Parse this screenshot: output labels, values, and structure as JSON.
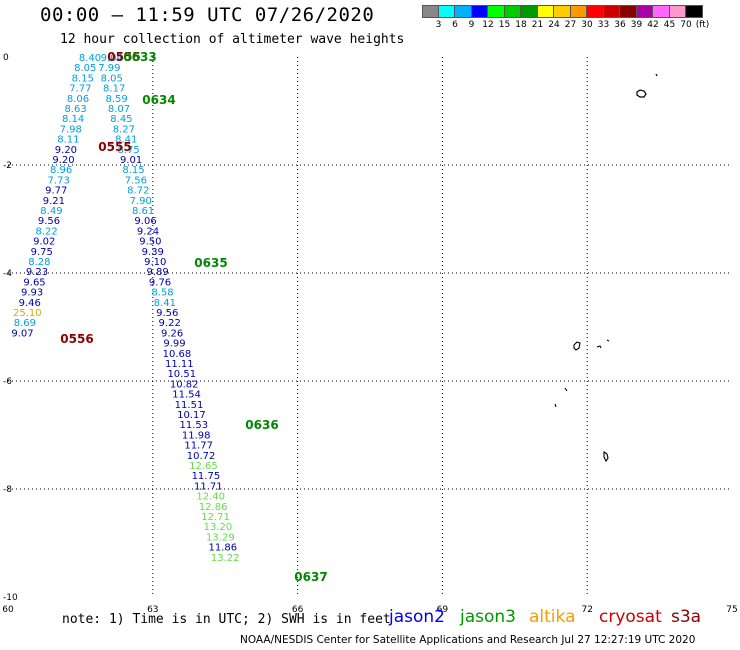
{
  "header": {
    "title": "00:00 – 11:59 UTC 07/26/2020",
    "subtitle": "12 hour collection of altimeter wave heights"
  },
  "legend": {
    "colors": [
      "#888888",
      "#00ffff",
      "#00b0ff",
      "#0000ff",
      "#00ff00",
      "#00cc00",
      "#009900",
      "#ffff00",
      "#ffcc00",
      "#ff9900",
      "#ff0000",
      "#cc0000",
      "#880000",
      "#aa00aa",
      "#ff66ff",
      "#ff99cc",
      "#000000"
    ],
    "labels": [
      "3",
      "6",
      "9",
      "12",
      "15",
      "18",
      "21",
      "24",
      "27",
      "30",
      "33",
      "36",
      "39",
      "42",
      "45",
      "70",
      "(ft)"
    ]
  },
  "axes": {
    "x_labels": [
      "60",
      "63",
      "66",
      "69",
      "72",
      "75"
    ],
    "y_labels": [
      "0",
      "-2",
      "-4",
      "-6",
      "-8",
      "-10"
    ]
  },
  "satellites": [
    {
      "name": "jason2",
      "color": "#0000ee"
    },
    {
      "name": "jason3",
      "color": "#009900"
    },
    {
      "name": "altika",
      "color": "#ff9900"
    },
    {
      "name": "cryosat",
      "color": "#cc0000"
    },
    {
      "name": "s3a",
      "color": "#880000"
    }
  ],
  "footer": {
    "note": "note: 1) Time is in UTC; 2) SWH is in feet",
    "credit": "NOAA/NESDIS Center for Satellite Applications and Research   Jul 27 12:27:19 UTC 2020"
  },
  "chart_data": {
    "type": "scatter",
    "title": "00:00 – 11:59 UTC 07/26/2020",
    "subtitle": "12 hour collection of altimeter wave heights",
    "xlim": [
      60,
      75
    ],
    "ylim": [
      -10,
      0
    ],
    "x_ticks": [
      60,
      63,
      66,
      69,
      72,
      75
    ],
    "y_ticks": [
      0,
      -2,
      -4,
      -6,
      -8,
      -10
    ],
    "grid": true,
    "colors": {
      "wh_cyan": "#00a0e0",
      "wh_blue": "#0000aa",
      "wh_green": "#66dd44",
      "wh_gold": "#ddaa00",
      "time_s3a": "#880000",
      "time_jason3": "#008800"
    },
    "tracks": [
      {
        "name": "track-west",
        "points": [
          {
            "x": 61.7,
            "y": -0.0,
            "t": "8.40",
            "c": "wh_cyan"
          },
          {
            "x": 61.6,
            "y": -0.25,
            "t": "8.05",
            "c": "wh_cyan"
          },
          {
            "x": 61.55,
            "y": -0.5,
            "t": "8.15",
            "c": "wh_cyan"
          },
          {
            "x": 61.5,
            "y": -0.75,
            "t": "7.77",
            "c": "wh_cyan"
          },
          {
            "x": 61.45,
            "y": -1.0,
            "t": "8.06",
            "c": "wh_cyan"
          },
          {
            "x": 61.4,
            "y": -1.25,
            "t": "8.63",
            "c": "wh_cyan"
          },
          {
            "x": 61.35,
            "y": -1.5,
            "t": "8.14",
            "c": "wh_cyan"
          },
          {
            "x": 61.3,
            "y": -1.75,
            "t": "7.98",
            "c": "wh_cyan"
          },
          {
            "x": 61.25,
            "y": -2.0,
            "t": "8.11",
            "c": "wh_cyan"
          },
          {
            "x": 61.2,
            "y": -2.25,
            "t": "9.20",
            "c": "wh_blue"
          },
          {
            "x": 61.15,
            "y": -2.5,
            "t": "9.20",
            "c": "wh_blue"
          },
          {
            "x": 61.1,
            "y": -2.75,
            "t": "8.96",
            "c": "wh_cyan"
          },
          {
            "x": 61.05,
            "y": -3.0,
            "t": "7.73",
            "c": "wh_cyan"
          },
          {
            "x": 61.0,
            "y": -3.25,
            "t": "9.77",
            "c": "wh_blue"
          },
          {
            "x": 60.95,
            "y": -3.5,
            "t": "9.21",
            "c": "wh_blue"
          },
          {
            "x": 60.9,
            "y": -3.75,
            "t": "8.49",
            "c": "wh_cyan"
          },
          {
            "x": 60.85,
            "y": -4.0,
            "t": "9.56",
            "c": "wh_blue"
          },
          {
            "x": 60.8,
            "y": -4.25,
            "t": "8.22",
            "c": "wh_cyan"
          },
          {
            "x": 60.75,
            "y": -4.5,
            "t": "9.02",
            "c": "wh_blue"
          },
          {
            "x": 60.7,
            "y": -4.75,
            "t": "9.75",
            "c": "wh_blue"
          },
          {
            "x": 60.65,
            "y": -5.0,
            "t": "8.28",
            "c": "wh_cyan"
          },
          {
            "x": 60.6,
            "y": -5.25,
            "t": "9.23",
            "c": "wh_blue"
          },
          {
            "x": 60.55,
            "y": -5.5,
            "t": "9.65",
            "c": "wh_blue"
          },
          {
            "x": 60.5,
            "y": -5.75,
            "t": "9.93",
            "c": "wh_blue"
          },
          {
            "x": 60.45,
            "y": -6.0,
            "t": "9.46",
            "c": "wh_blue"
          },
          {
            "x": 60.4,
            "y": -6.25,
            "t": "25.10",
            "c": "wh_gold"
          },
          {
            "x": 60.35,
            "y": -6.5,
            "t": "8.69",
            "c": "wh_cyan"
          },
          {
            "x": 60.3,
            "y": -6.75,
            "t": "9.07",
            "c": "wh_blue"
          }
        ]
      },
      {
        "name": "track-east",
        "points": [
          {
            "x": 62.15,
            "y": -0.0,
            "t": "9.04",
            "c": "wh_cyan"
          },
          {
            "x": 62.1,
            "y": -0.25,
            "t": "7.99",
            "c": "wh_cyan"
          },
          {
            "x": 62.15,
            "y": -0.5,
            "t": "8.05",
            "c": "wh_cyan"
          },
          {
            "x": 62.2,
            "y": -0.75,
            "t": "8.17",
            "c": "wh_cyan"
          },
          {
            "x": 62.25,
            "y": -1.0,
            "t": "8.59",
            "c": "wh_cyan"
          },
          {
            "x": 62.3,
            "y": -1.25,
            "t": "8.07",
            "c": "wh_cyan"
          },
          {
            "x": 62.35,
            "y": -1.5,
            "t": "8.45",
            "c": "wh_cyan"
          },
          {
            "x": 62.4,
            "y": -1.75,
            "t": "8.27",
            "c": "wh_cyan"
          },
          {
            "x": 62.45,
            "y": -2.0,
            "t": "8.41",
            "c": "wh_cyan"
          },
          {
            "x": 62.5,
            "y": -2.25,
            "t": "8.75",
            "c": "wh_cyan"
          },
          {
            "x": 62.55,
            "y": -2.5,
            "t": "9.01",
            "c": "wh_blue"
          },
          {
            "x": 62.6,
            "y": -2.75,
            "t": "8.15",
            "c": "wh_cyan"
          },
          {
            "x": 62.65,
            "y": -3.0,
            "t": "7.56",
            "c": "wh_cyan"
          },
          {
            "x": 62.7,
            "y": -3.25,
            "t": "8.72",
            "c": "wh_cyan"
          },
          {
            "x": 62.75,
            "y": -3.5,
            "t": "7.90",
            "c": "wh_cyan"
          },
          {
            "x": 62.8,
            "y": -3.75,
            "t": "8.61",
            "c": "wh_cyan"
          },
          {
            "x": 62.85,
            "y": -4.0,
            "t": "9.06",
            "c": "wh_blue"
          },
          {
            "x": 62.9,
            "y": -4.25,
            "t": "9.24",
            "c": "wh_blue"
          },
          {
            "x": 62.95,
            "y": -4.5,
            "t": "9.50",
            "c": "wh_blue"
          },
          {
            "x": 63.0,
            "y": -4.75,
            "t": "9.39",
            "c": "wh_blue"
          },
          {
            "x": 63.05,
            "y": -5.0,
            "t": "9.10",
            "c": "wh_blue"
          },
          {
            "x": 63.1,
            "y": -5.25,
            "t": "9.89",
            "c": "wh_blue"
          },
          {
            "x": 63.15,
            "y": -5.5,
            "t": "9.76",
            "c": "wh_blue"
          },
          {
            "x": 63.2,
            "y": -5.75,
            "t": "8.58",
            "c": "wh_cyan"
          },
          {
            "x": 63.25,
            "y": -6.0,
            "t": "8.41",
            "c": "wh_cyan"
          },
          {
            "x": 63.3,
            "y": -6.25,
            "t": "9.56",
            "c": "wh_blue"
          },
          {
            "x": 63.35,
            "y": -6.5,
            "t": "9.22",
            "c": "wh_blue"
          },
          {
            "x": 63.4,
            "y": -6.75,
            "t": "9.26",
            "c": "wh_blue"
          },
          {
            "x": 63.45,
            "y": -7.0,
            "t": "9.99",
            "c": "wh_blue"
          },
          {
            "x": 63.5,
            "y": -7.25,
            "t": "10.68",
            "c": "wh_blue"
          },
          {
            "x": 63.55,
            "y": -7.5,
            "t": "11.11",
            "c": "wh_blue"
          },
          {
            "x": 63.6,
            "y": -7.75,
            "t": "10.51",
            "c": "wh_blue"
          },
          {
            "x": 63.65,
            "y": -8.0,
            "t": "10.82",
            "c": "wh_blue"
          },
          {
            "x": 63.7,
            "y": -8.25,
            "t": "11.54",
            "c": "wh_blue"
          },
          {
            "x": 63.75,
            "y": -8.5,
            "t": "11.51",
            "c": "wh_blue"
          },
          {
            "x": 63.8,
            "y": -8.75,
            "t": "10.17",
            "c": "wh_blue"
          },
          {
            "x": 63.85,
            "y": -9.0,
            "t": "11.53",
            "c": "wh_blue"
          },
          {
            "x": 63.9,
            "y": -9.25,
            "t": "11.98",
            "c": "wh_blue"
          },
          {
            "x": 63.95,
            "y": -9.5,
            "t": "11.77",
            "c": "wh_blue"
          },
          {
            "x": 64.0,
            "y": -9.75,
            "t": "10.72",
            "c": "wh_blue"
          },
          {
            "x": 64.05,
            "y": -10.0,
            "t": "12.65",
            "c": "wh_green"
          },
          {
            "x": 64.1,
            "y": -10.25,
            "t": "11.75",
            "c": "wh_blue"
          },
          {
            "x": 64.15,
            "y": -10.5,
            "t": "11.71",
            "c": "wh_blue"
          },
          {
            "x": 64.2,
            "y": -10.75,
            "t": "12.40",
            "c": "wh_green"
          },
          {
            "x": 64.25,
            "y": -11.0,
            "t": "12.86",
            "c": "wh_green"
          },
          {
            "x": 64.3,
            "y": -11.25,
            "t": "12.71",
            "c": "wh_green"
          },
          {
            "x": 64.35,
            "y": -11.5,
            "t": "13.20",
            "c": "wh_green"
          },
          {
            "x": 64.4,
            "y": -11.75,
            "t": "13.29",
            "c": "wh_green"
          },
          {
            "x": 64.45,
            "y": -12.0,
            "t": "11.86",
            "c": "wh_blue"
          },
          {
            "x": 64.5,
            "y": -12.25,
            "t": "13.22",
            "c": "wh_green"
          }
        ]
      }
    ],
    "time_labels": [
      {
        "x": 62.2,
        "y": 0.0,
        "t": "0555",
        "c": "time_s3a"
      },
      {
        "x": 62.35,
        "y": 0.0,
        "t": "0633",
        "c": "time_jason3"
      },
      {
        "x": 62.8,
        "y": -0.9,
        "t": "0634",
        "c": "time_jason3"
      },
      {
        "x": 61.85,
        "y": -1.65,
        "t": "0555",
        "c": "time_s3a"
      },
      {
        "x": 63.9,
        "y": -4.75,
        "t": "0635",
        "c": "time_jason3"
      },
      {
        "x": 61.0,
        "y": -5.55,
        "t": "0556",
        "c": "time_s3a"
      },
      {
        "x": 65.0,
        "y": -8.75,
        "t": "0636",
        "c": "time_jason3"
      },
      {
        "x": 65.25,
        "y": -12.0,
        "t": "0637",
        "c": "time_jason3"
      }
    ]
  }
}
